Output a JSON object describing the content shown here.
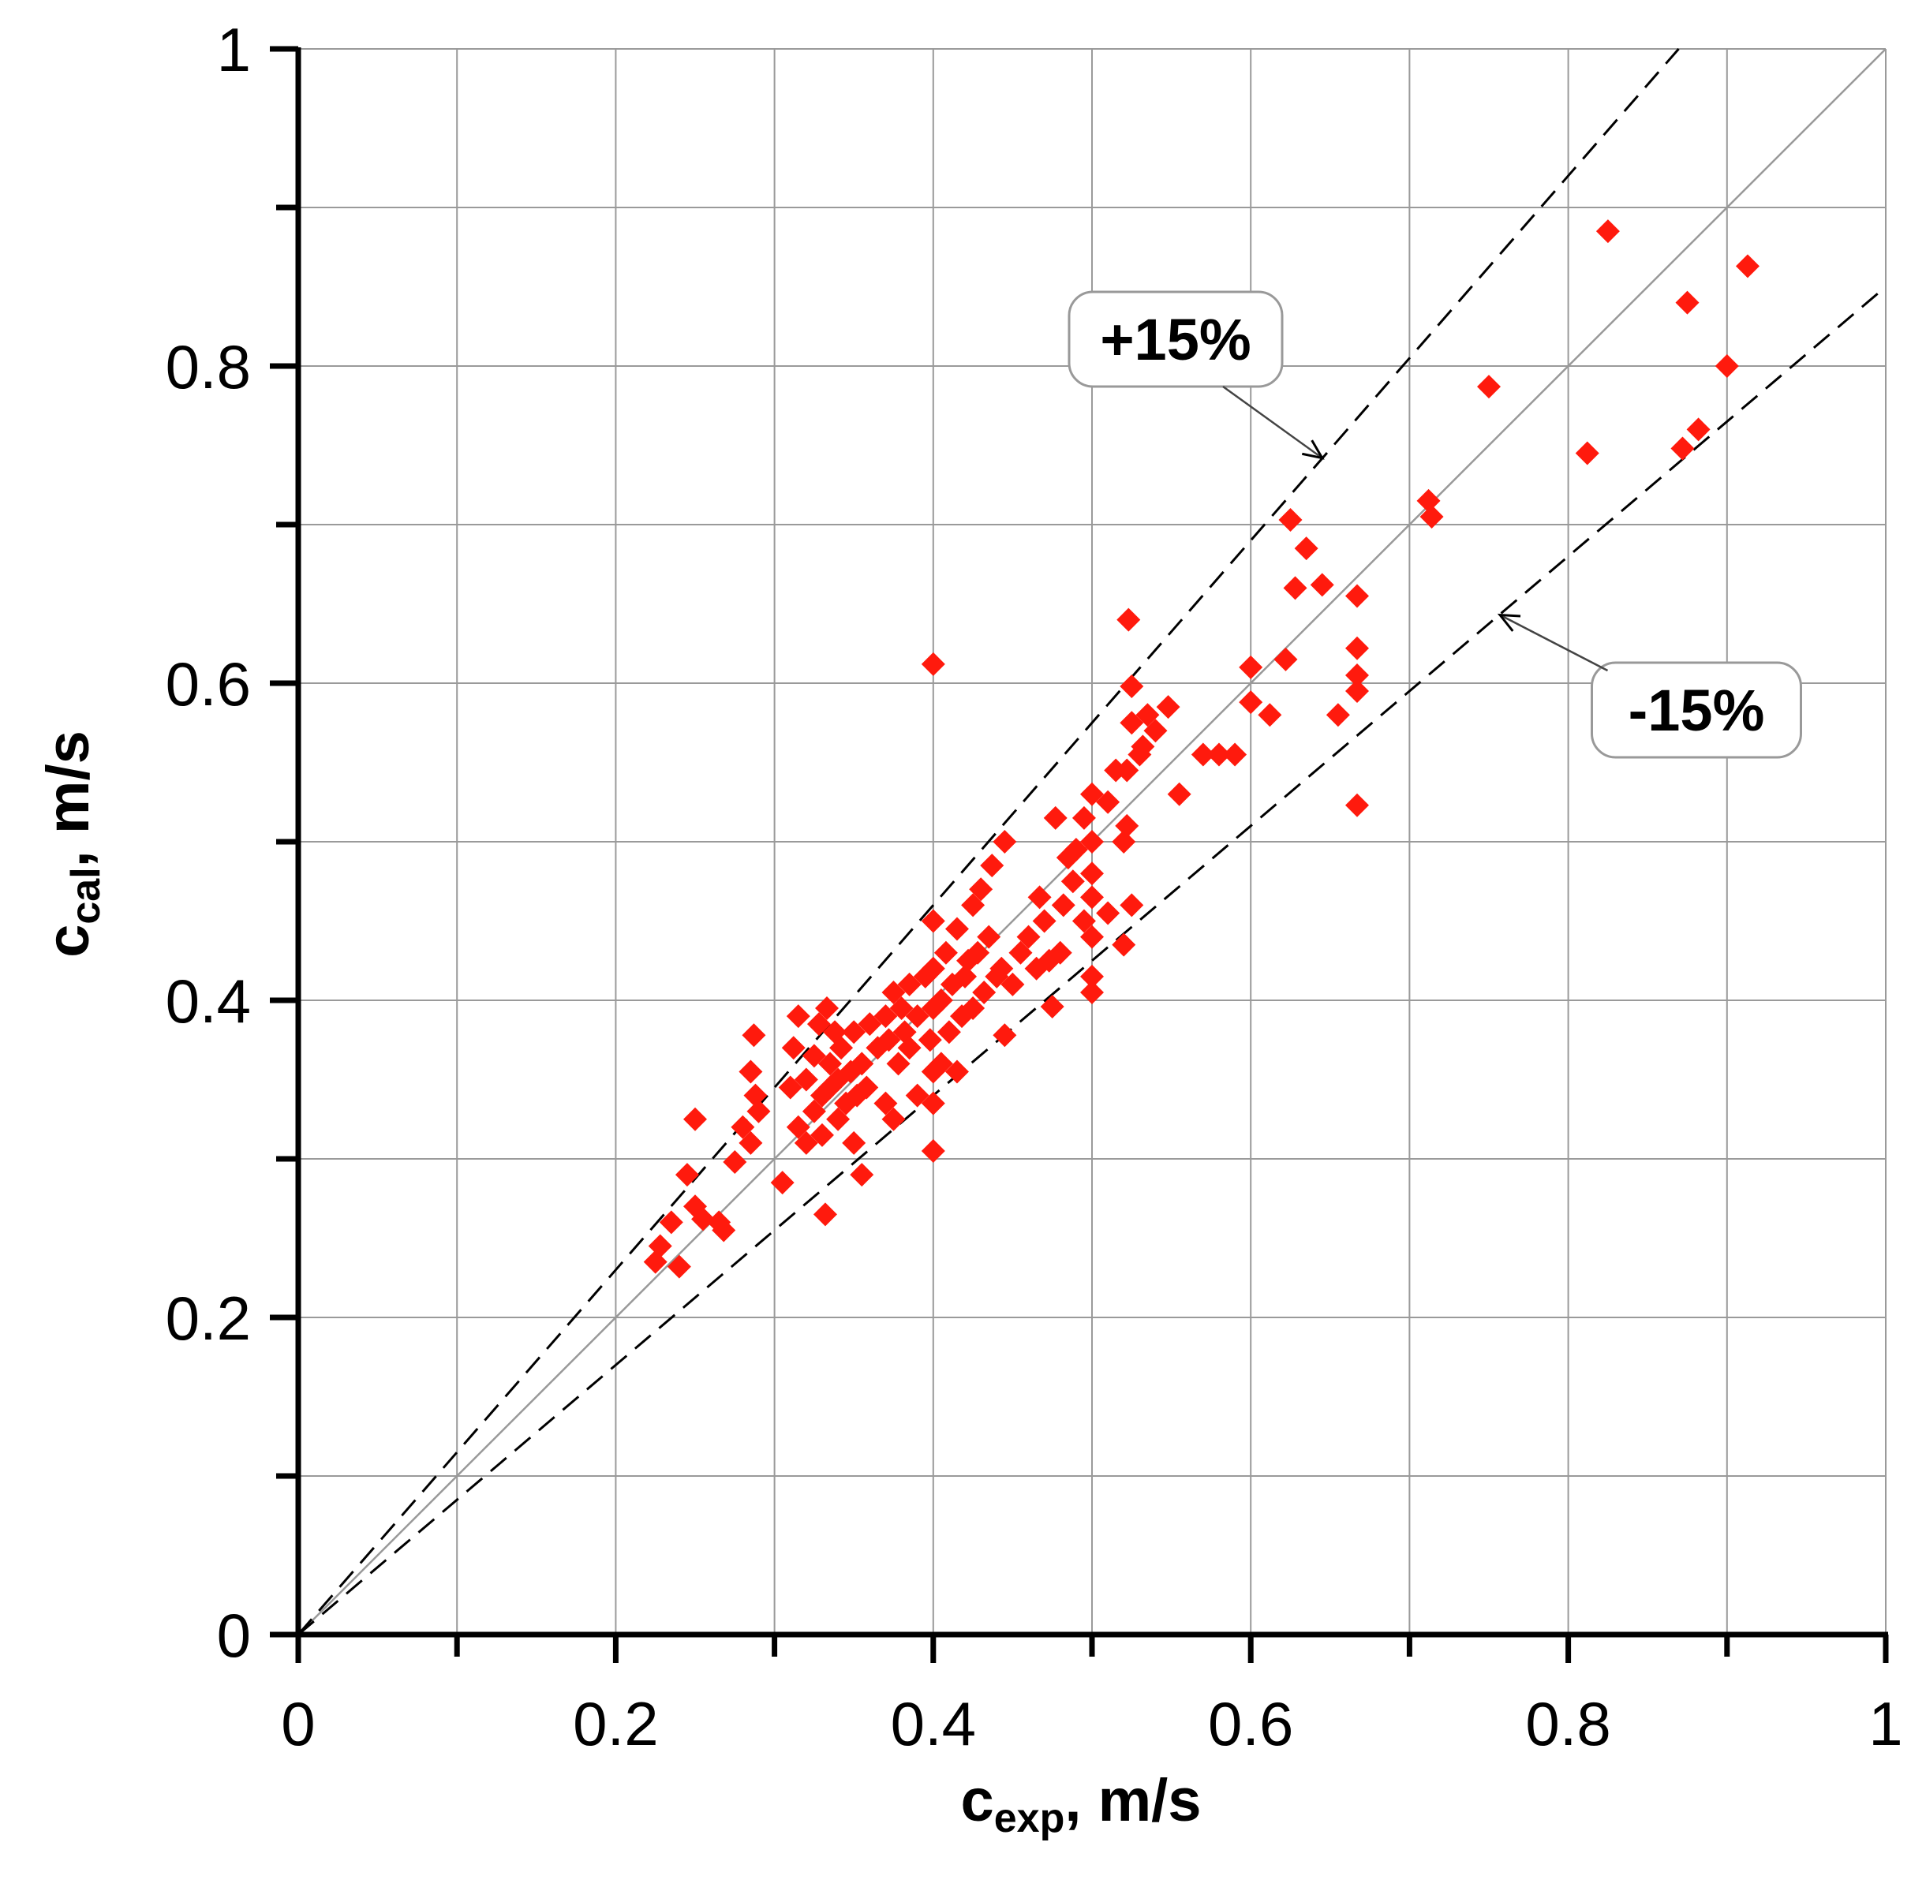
{
  "chart_data": {
    "type": "scatter",
    "title": "",
    "xlabel": {
      "main": "c",
      "sub": "exp",
      "suffix": ", m/s"
    },
    "ylabel": {
      "main": "c",
      "sub": "cal",
      "suffix": ", m/s"
    },
    "xlim": [
      0,
      1
    ],
    "ylim": [
      0,
      1
    ],
    "x_ticks": [
      "0",
      "0.2",
      "0.4",
      "0.6",
      "0.8",
      "1"
    ],
    "y_ticks": [
      "0",
      "0.2",
      "0.4",
      "0.6",
      "0.8",
      "1"
    ],
    "grid": true,
    "marker": "diamond",
    "marker_color": "#ff1a0d",
    "reference_lines": [
      {
        "label": "",
        "slope": 1.0,
        "style": "solid",
        "color": "#999999"
      },
      {
        "label": "+15%",
        "slope": 1.15,
        "style": "dashed",
        "color": "#000000"
      },
      {
        "label": "-15%",
        "slope": 0.85,
        "style": "dashed",
        "color": "#000000"
      }
    ],
    "annotations": [
      {
        "text": "+15%",
        "target": [
          0.645,
          0.742
        ]
      },
      {
        "text": "-15%",
        "target": [
          0.757,
          0.643
        ]
      }
    ],
    "series": [
      {
        "points": [
          [
            0.225,
            0.235
          ],
          [
            0.228,
            0.245
          ],
          [
            0.235,
            0.26
          ],
          [
            0.24,
            0.232
          ],
          [
            0.245,
            0.29
          ],
          [
            0.25,
            0.325
          ],
          [
            0.25,
            0.27
          ],
          [
            0.255,
            0.262
          ],
          [
            0.265,
            0.26
          ],
          [
            0.268,
            0.255
          ],
          [
            0.275,
            0.298
          ],
          [
            0.28,
            0.32
          ],
          [
            0.285,
            0.31
          ],
          [
            0.285,
            0.355
          ],
          [
            0.287,
            0.378
          ],
          [
            0.288,
            0.34
          ],
          [
            0.29,
            0.33
          ],
          [
            0.305,
            0.285
          ],
          [
            0.31,
            0.345
          ],
          [
            0.312,
            0.37
          ],
          [
            0.315,
            0.39
          ],
          [
            0.315,
            0.32
          ],
          [
            0.32,
            0.31
          ],
          [
            0.32,
            0.35
          ],
          [
            0.325,
            0.33
          ],
          [
            0.325,
            0.365
          ],
          [
            0.328,
            0.385
          ],
          [
            0.33,
            0.34
          ],
          [
            0.33,
            0.315
          ],
          [
            0.332,
            0.265
          ],
          [
            0.333,
            0.395
          ],
          [
            0.335,
            0.36
          ],
          [
            0.335,
            0.345
          ],
          [
            0.338,
            0.38
          ],
          [
            0.34,
            0.35
          ],
          [
            0.34,
            0.325
          ],
          [
            0.342,
            0.37
          ],
          [
            0.345,
            0.335
          ],
          [
            0.348,
            0.355
          ],
          [
            0.35,
            0.31
          ],
          [
            0.35,
            0.38
          ],
          [
            0.352,
            0.34
          ],
          [
            0.355,
            0.29
          ],
          [
            0.355,
            0.36
          ],
          [
            0.358,
            0.345
          ],
          [
            0.36,
            0.385
          ],
          [
            0.365,
            0.37
          ],
          [
            0.37,
            0.335
          ],
          [
            0.37,
            0.39
          ],
          [
            0.372,
            0.375
          ],
          [
            0.375,
            0.325
          ],
          [
            0.375,
            0.405
          ],
          [
            0.378,
            0.36
          ],
          [
            0.38,
            0.395
          ],
          [
            0.382,
            0.38
          ],
          [
            0.385,
            0.37
          ],
          [
            0.385,
            0.41
          ],
          [
            0.39,
            0.39
          ],
          [
            0.39,
            0.34
          ],
          [
            0.395,
            0.415
          ],
          [
            0.398,
            0.375
          ],
          [
            0.4,
            0.305
          ],
          [
            0.4,
            0.335
          ],
          [
            0.4,
            0.355
          ],
          [
            0.4,
            0.395
          ],
          [
            0.4,
            0.42
          ],
          [
            0.4,
            0.45
          ],
          [
            0.4,
            0.612
          ],
          [
            0.405,
            0.36
          ],
          [
            0.405,
            0.4
          ],
          [
            0.408,
            0.43
          ],
          [
            0.41,
            0.38
          ],
          [
            0.412,
            0.41
          ],
          [
            0.415,
            0.355
          ],
          [
            0.415,
            0.445
          ],
          [
            0.418,
            0.39
          ],
          [
            0.42,
            0.415
          ],
          [
            0.422,
            0.425
          ],
          [
            0.425,
            0.46
          ],
          [
            0.425,
            0.395
          ],
          [
            0.428,
            0.43
          ],
          [
            0.43,
            0.47
          ],
          [
            0.432,
            0.405
          ],
          [
            0.435,
            0.44
          ],
          [
            0.437,
            0.485
          ],
          [
            0.44,
            0.415
          ],
          [
            0.443,
            0.42
          ],
          [
            0.445,
            0.5
          ],
          [
            0.445,
            0.378
          ],
          [
            0.45,
            0.41
          ],
          [
            0.455,
            0.43
          ],
          [
            0.46,
            0.44
          ],
          [
            0.465,
            0.42
          ],
          [
            0.467,
            0.465
          ],
          [
            0.47,
            0.45
          ],
          [
            0.473,
            0.425
          ],
          [
            0.475,
            0.396
          ],
          [
            0.477,
            0.515
          ],
          [
            0.48,
            0.43
          ],
          [
            0.482,
            0.46
          ],
          [
            0.485,
            0.49
          ],
          [
            0.488,
            0.475
          ],
          [
            0.49,
            0.495
          ],
          [
            0.495,
            0.45
          ],
          [
            0.495,
            0.515
          ],
          [
            0.5,
            0.405
          ],
          [
            0.5,
            0.415
          ],
          [
            0.5,
            0.44
          ],
          [
            0.5,
            0.465
          ],
          [
            0.5,
            0.48
          ],
          [
            0.5,
            0.5
          ],
          [
            0.5,
            0.53
          ],
          [
            0.51,
            0.455
          ],
          [
            0.51,
            0.525
          ],
          [
            0.515,
            0.545
          ],
          [
            0.52,
            0.435
          ],
          [
            0.52,
            0.5
          ],
          [
            0.522,
            0.51
          ],
          [
            0.522,
            0.545
          ],
          [
            0.523,
            0.64
          ],
          [
            0.525,
            0.46
          ],
          [
            0.525,
            0.575
          ],
          [
            0.525,
            0.598
          ],
          [
            0.53,
            0.555
          ],
          [
            0.532,
            0.56
          ],
          [
            0.535,
            0.58
          ],
          [
            0.54,
            0.57
          ],
          [
            0.548,
            0.585
          ],
          [
            0.555,
            0.53
          ],
          [
            0.57,
            0.555
          ],
          [
            0.58,
            0.555
          ],
          [
            0.59,
            0.555
          ],
          [
            0.6,
            0.588
          ],
          [
            0.6,
            0.61
          ],
          [
            0.612,
            0.58
          ],
          [
            0.622,
            0.615
          ],
          [
            0.625,
            0.703
          ],
          [
            0.628,
            0.66
          ],
          [
            0.635,
            0.685
          ],
          [
            0.645,
            0.662
          ],
          [
            0.655,
            0.58
          ],
          [
            0.667,
            0.523
          ],
          [
            0.667,
            0.595
          ],
          [
            0.667,
            0.605
          ],
          [
            0.667,
            0.622
          ],
          [
            0.667,
            0.655
          ],
          [
            0.712,
            0.715
          ],
          [
            0.714,
            0.705
          ],
          [
            0.75,
            0.787
          ],
          [
            0.812,
            0.745
          ],
          [
            0.825,
            0.885
          ],
          [
            0.872,
            0.748
          ],
          [
            0.875,
            0.84
          ],
          [
            0.882,
            0.76
          ],
          [
            0.9,
            0.8
          ],
          [
            0.913,
            0.863
          ]
        ]
      }
    ]
  }
}
